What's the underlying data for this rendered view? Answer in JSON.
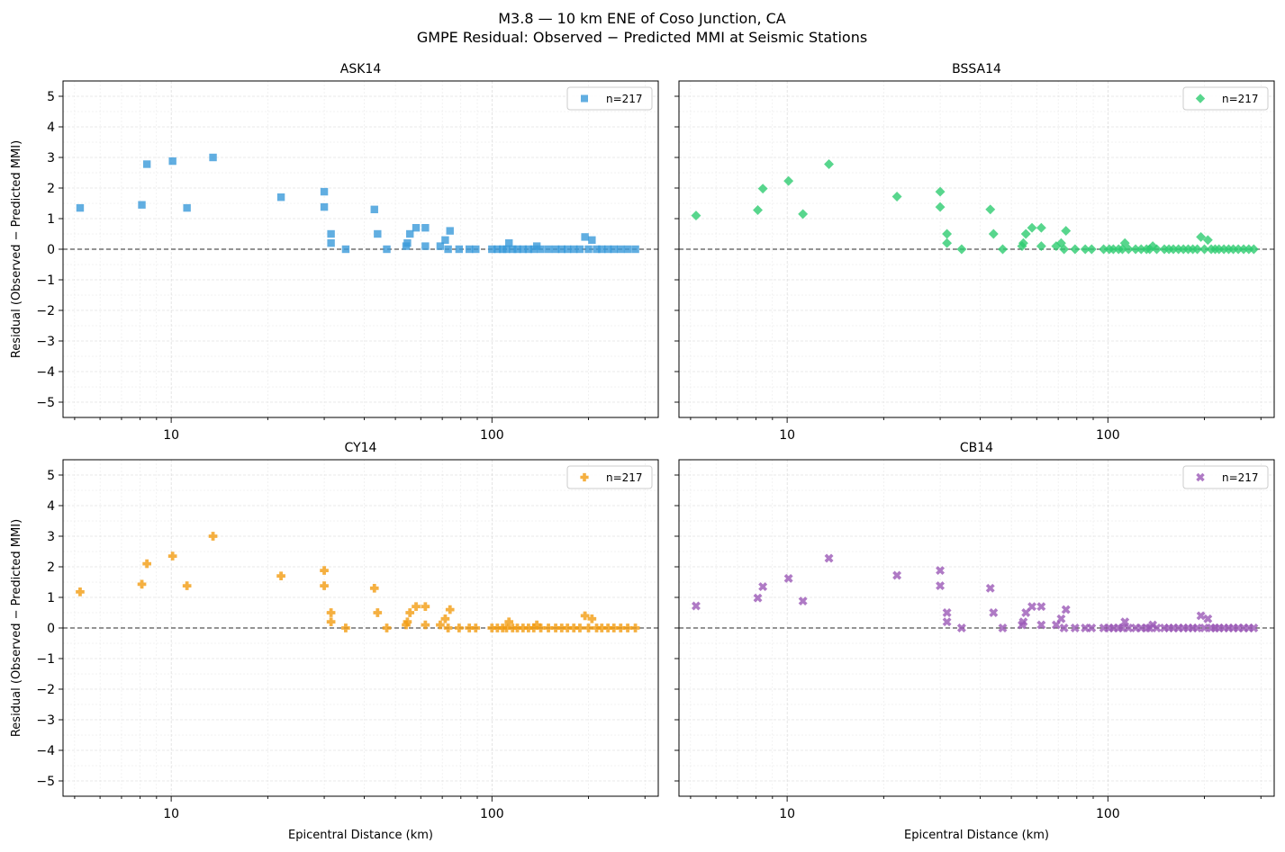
{
  "figure": {
    "title_line1": "M3.8 — 10 km ENE of Coso Junction, CA",
    "title_line2": "GMPE Residual: Observed − Predicted MMI at Seismic Stations"
  },
  "chart_data": [
    {
      "type": "scatter",
      "title": "ASK14",
      "color": "#3a9ad9",
      "marker": "square",
      "legend": "n=217",
      "legend_position": "top-right",
      "xlabel": "",
      "ylabel": "Residual (Observed − Predicted MMI)",
      "xscale": "log",
      "xlim": [
        4.6,
        330
      ],
      "ylim": [
        -5.5,
        5.5
      ],
      "x_ticks": [
        "10",
        "100"
      ],
      "y_ticks": [
        "5",
        "4",
        "3",
        "2",
        "1",
        "0",
        "−1",
        "−2",
        "−3",
        "−4",
        "−5"
      ],
      "reference_line": 0,
      "grid": true,
      "points": [
        [
          5.2,
          1.35
        ],
        [
          8.1,
          1.45
        ],
        [
          8.4,
          2.78
        ],
        [
          10.1,
          2.88
        ],
        [
          11.2,
          1.35
        ],
        [
          13.5,
          3.0
        ],
        [
          22,
          1.7
        ],
        [
          30,
          1.88
        ],
        [
          30,
          1.38
        ],
        [
          31.5,
          0.5
        ],
        [
          31.5,
          0.2
        ],
        [
          35,
          0
        ],
        [
          43,
          1.3
        ],
        [
          44,
          0.5
        ],
        [
          47,
          0
        ],
        [
          54,
          0.1
        ],
        [
          54.5,
          0.2
        ],
        [
          55.5,
          0.5
        ],
        [
          58,
          0.7
        ],
        [
          62,
          0.7
        ],
        [
          62,
          0.1
        ],
        [
          69,
          0.1
        ],
        [
          71.5,
          0.3
        ],
        [
          73,
          0
        ],
        [
          74,
          0.6
        ],
        [
          79,
          0
        ],
        [
          85,
          0
        ],
        [
          89,
          0
        ],
        [
          100,
          0
        ],
        [
          104,
          0
        ],
        [
          108,
          0
        ],
        [
          111,
          0
        ],
        [
          113,
          0.2
        ],
        [
          116,
          0
        ],
        [
          120,
          0
        ],
        [
          125,
          0
        ],
        [
          130,
          0
        ],
        [
          135,
          0
        ],
        [
          138,
          0.1
        ],
        [
          142,
          0
        ],
        [
          150,
          0
        ],
        [
          158,
          0
        ],
        [
          165,
          0
        ],
        [
          172,
          0
        ],
        [
          180,
          0
        ],
        [
          188,
          0
        ],
        [
          195,
          0.4
        ],
        [
          200,
          0
        ],
        [
          205,
          0.3
        ],
        [
          212,
          0
        ],
        [
          220,
          0
        ],
        [
          230,
          0
        ],
        [
          240,
          0
        ],
        [
          252,
          0
        ],
        [
          265,
          0
        ],
        [
          280,
          0
        ]
      ]
    },
    {
      "type": "scatter",
      "title": "BSSA14",
      "color": "#2ecc71",
      "marker": "diamond",
      "legend": "n=217",
      "legend_position": "top-right",
      "xlabel": "",
      "ylabel": "",
      "xscale": "log",
      "xlim": [
        4.6,
        330
      ],
      "ylim": [
        -5.5,
        5.5
      ],
      "x_ticks": [
        "10",
        "100"
      ],
      "y_ticks": [],
      "reference_line": 0,
      "grid": true,
      "points": [
        [
          5.2,
          1.1
        ],
        [
          8.1,
          1.28
        ],
        [
          8.4,
          1.98
        ],
        [
          10.1,
          2.23
        ],
        [
          11.2,
          1.15
        ],
        [
          13.5,
          2.78
        ],
        [
          22,
          1.72
        ],
        [
          30,
          1.88
        ],
        [
          30,
          1.38
        ],
        [
          31.5,
          0.5
        ],
        [
          31.5,
          0.2
        ],
        [
          35,
          0
        ],
        [
          43,
          1.3
        ],
        [
          44,
          0.5
        ],
        [
          47,
          0
        ],
        [
          54,
          0.1
        ],
        [
          54.5,
          0.2
        ],
        [
          55.5,
          0.5
        ],
        [
          58,
          0.7
        ],
        [
          62,
          0.7
        ],
        [
          62,
          0.1
        ],
        [
          69,
          0.1
        ],
        [
          71.5,
          0.2
        ],
        [
          73,
          0
        ],
        [
          74,
          0.6
        ],
        [
          79,
          0
        ],
        [
          85,
          0
        ],
        [
          89,
          0
        ],
        [
          97,
          0
        ],
        [
          101,
          0
        ],
        [
          104,
          0
        ],
        [
          108,
          0
        ],
        [
          111,
          0
        ],
        [
          113,
          0.2
        ],
        [
          116,
          0
        ],
        [
          122,
          0
        ],
        [
          127,
          0
        ],
        [
          132,
          0
        ],
        [
          135,
          0
        ],
        [
          138,
          0.1
        ],
        [
          142,
          0
        ],
        [
          150,
          0
        ],
        [
          155,
          0
        ],
        [
          160,
          0
        ],
        [
          166,
          0
        ],
        [
          172,
          0
        ],
        [
          178,
          0
        ],
        [
          184,
          0
        ],
        [
          190,
          0
        ],
        [
          195,
          0.4
        ],
        [
          200,
          0
        ],
        [
          205,
          0.3
        ],
        [
          210,
          0
        ],
        [
          216,
          0
        ],
        [
          222,
          0
        ],
        [
          230,
          0
        ],
        [
          238,
          0
        ],
        [
          246,
          0
        ],
        [
          255,
          0
        ],
        [
          265,
          0
        ],
        [
          275,
          0
        ],
        [
          285,
          0
        ]
      ]
    },
    {
      "type": "scatter",
      "title": "CY14",
      "color": "#f39c12",
      "marker": "plus",
      "legend": "n=217",
      "legend_position": "top-right",
      "xlabel": "Epicentral Distance (km)",
      "ylabel": "Residual (Observed − Predicted MMI)",
      "xscale": "log",
      "xlim": [
        4.6,
        330
      ],
      "ylim": [
        -5.5,
        5.5
      ],
      "x_ticks": [
        "10",
        "100"
      ],
      "y_ticks": [
        "5",
        "4",
        "3",
        "2",
        "1",
        "0",
        "−1",
        "−2",
        "−3",
        "−4",
        "−5"
      ],
      "reference_line": 0,
      "grid": true,
      "points": [
        [
          5.2,
          1.18
        ],
        [
          8.1,
          1.43
        ],
        [
          8.4,
          2.1
        ],
        [
          10.1,
          2.35
        ],
        [
          11.2,
          1.38
        ],
        [
          13.5,
          3.0
        ],
        [
          22,
          1.7
        ],
        [
          30,
          1.88
        ],
        [
          30,
          1.38
        ],
        [
          31.5,
          0.5
        ],
        [
          31.5,
          0.2
        ],
        [
          35,
          0
        ],
        [
          43,
          1.3
        ],
        [
          44,
          0.5
        ],
        [
          47,
          0
        ],
        [
          54,
          0.1
        ],
        [
          54.5,
          0.2
        ],
        [
          55.5,
          0.5
        ],
        [
          58,
          0.7
        ],
        [
          62,
          0.7
        ],
        [
          62,
          0.1
        ],
        [
          69,
          0.1
        ],
        [
          71.5,
          0.3
        ],
        [
          73,
          0
        ],
        [
          74,
          0.6
        ],
        [
          79,
          0
        ],
        [
          85,
          0
        ],
        [
          89,
          0
        ],
        [
          100,
          0
        ],
        [
          104,
          0
        ],
        [
          108,
          0
        ],
        [
          111,
          0
        ],
        [
          113,
          0.2
        ],
        [
          116,
          0
        ],
        [
          120,
          0
        ],
        [
          125,
          0
        ],
        [
          130,
          0
        ],
        [
          135,
          0
        ],
        [
          138,
          0.1
        ],
        [
          142,
          0
        ],
        [
          150,
          0
        ],
        [
          158,
          0
        ],
        [
          165,
          0
        ],
        [
          172,
          0
        ],
        [
          180,
          0
        ],
        [
          188,
          0
        ],
        [
          195,
          0.4
        ],
        [
          200,
          0
        ],
        [
          205,
          0.3
        ],
        [
          212,
          0
        ],
        [
          220,
          0
        ],
        [
          230,
          0
        ],
        [
          240,
          0
        ],
        [
          252,
          0
        ],
        [
          265,
          0
        ],
        [
          280,
          0
        ]
      ]
    },
    {
      "type": "scatter",
      "title": "CB14",
      "color": "#9b59b6",
      "marker": "x",
      "legend": "n=217",
      "legend_position": "top-right",
      "xlabel": "Epicentral Distance (km)",
      "ylabel": "",
      "xscale": "log",
      "xlim": [
        4.6,
        330
      ],
      "ylim": [
        -5.5,
        5.5
      ],
      "x_ticks": [
        "10",
        "100"
      ],
      "y_ticks": [],
      "reference_line": 0,
      "grid": true,
      "points": [
        [
          5.2,
          0.72
        ],
        [
          8.1,
          0.98
        ],
        [
          8.4,
          1.35
        ],
        [
          10.1,
          1.62
        ],
        [
          11.2,
          0.88
        ],
        [
          13.5,
          2.28
        ],
        [
          22,
          1.72
        ],
        [
          30,
          1.88
        ],
        [
          30,
          1.38
        ],
        [
          31.5,
          0.5
        ],
        [
          31.5,
          0.2
        ],
        [
          35,
          0
        ],
        [
          43,
          1.3
        ],
        [
          44,
          0.5
        ],
        [
          47,
          0
        ],
        [
          54,
          0.1
        ],
        [
          54.5,
          0.2
        ],
        [
          55.5,
          0.5
        ],
        [
          58,
          0.7
        ],
        [
          62,
          0.7
        ],
        [
          62,
          0.1
        ],
        [
          69,
          0.1
        ],
        [
          71.5,
          0.3
        ],
        [
          73,
          0
        ],
        [
          74,
          0.6
        ],
        [
          79,
          0
        ],
        [
          85,
          0
        ],
        [
          89,
          0
        ],
        [
          97,
          0
        ],
        [
          101,
          0
        ],
        [
          104,
          0
        ],
        [
          108,
          0
        ],
        [
          111,
          0
        ],
        [
          113,
          0.2
        ],
        [
          116,
          0
        ],
        [
          122,
          0
        ],
        [
          127,
          0
        ],
        [
          132,
          0
        ],
        [
          135,
          0
        ],
        [
          138,
          0.1
        ],
        [
          142,
          0
        ],
        [
          150,
          0
        ],
        [
          155,
          0
        ],
        [
          160,
          0
        ],
        [
          166,
          0
        ],
        [
          172,
          0
        ],
        [
          178,
          0
        ],
        [
          184,
          0
        ],
        [
          190,
          0
        ],
        [
          195,
          0.4
        ],
        [
          200,
          0
        ],
        [
          205,
          0.3
        ],
        [
          210,
          0
        ],
        [
          216,
          0
        ],
        [
          222,
          0
        ],
        [
          230,
          0
        ],
        [
          238,
          0
        ],
        [
          246,
          0
        ],
        [
          255,
          0
        ],
        [
          265,
          0
        ],
        [
          275,
          0
        ],
        [
          285,
          0
        ]
      ]
    }
  ]
}
